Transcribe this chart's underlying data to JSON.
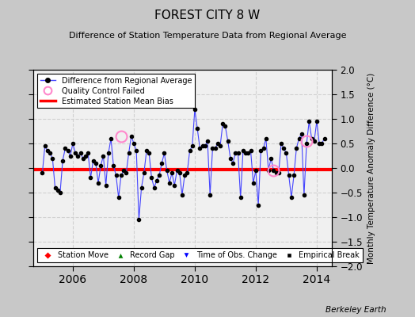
{
  "title": "FOREST CITY 8 W",
  "subtitle": "Difference of Station Temperature Data from Regional Average",
  "ylabel": "Monthly Temperature Anomaly Difference (°C)",
  "xlim": [
    2004.7,
    2014.5
  ],
  "ylim": [
    -2,
    2
  ],
  "yticks": [
    -2,
    -1.5,
    -1,
    -0.5,
    0,
    0.5,
    1,
    1.5,
    2
  ],
  "xticks": [
    2006,
    2008,
    2010,
    2012,
    2014
  ],
  "bias": -0.04,
  "background_color": "#c8c8c8",
  "plot_bg_color": "#f0f0f0",
  "grid_color": "#d0d0d0",
  "line_color": "#4444ff",
  "bias_color": "#ff0000",
  "qc_color": "#ff88cc",
  "watermark": "Berkeley Earth",
  "times": [
    2005.0,
    2005.083,
    2005.167,
    2005.25,
    2005.333,
    2005.417,
    2005.5,
    2005.583,
    2005.667,
    2005.75,
    2005.833,
    2005.917,
    2006.0,
    2006.083,
    2006.167,
    2006.25,
    2006.333,
    2006.417,
    2006.5,
    2006.583,
    2006.667,
    2006.75,
    2006.833,
    2006.917,
    2007.0,
    2007.083,
    2007.167,
    2007.25,
    2007.333,
    2007.417,
    2007.5,
    2007.583,
    2007.667,
    2007.75,
    2007.833,
    2007.917,
    2008.0,
    2008.083,
    2008.167,
    2008.25,
    2008.333,
    2008.417,
    2008.5,
    2008.583,
    2008.667,
    2008.75,
    2008.833,
    2008.917,
    2009.0,
    2009.083,
    2009.167,
    2009.25,
    2009.333,
    2009.417,
    2009.5,
    2009.583,
    2009.667,
    2009.75,
    2009.833,
    2009.917,
    2010.0,
    2010.083,
    2010.167,
    2010.25,
    2010.333,
    2010.417,
    2010.5,
    2010.583,
    2010.667,
    2010.75,
    2010.833,
    2010.917,
    2011.0,
    2011.083,
    2011.167,
    2011.25,
    2011.333,
    2011.417,
    2011.5,
    2011.583,
    2011.667,
    2011.75,
    2011.833,
    2011.917,
    2012.0,
    2012.083,
    2012.167,
    2012.25,
    2012.333,
    2012.417,
    2012.5,
    2012.583,
    2012.667,
    2012.75,
    2012.833,
    2012.917,
    2013.0,
    2013.083,
    2013.167,
    2013.25,
    2013.333,
    2013.417,
    2013.5,
    2013.583,
    2013.667,
    2013.75,
    2013.833,
    2013.917,
    2014.0,
    2014.083,
    2014.167,
    2014.25
  ],
  "values": [
    -0.1,
    0.45,
    0.35,
    0.3,
    0.2,
    -0.4,
    -0.45,
    -0.5,
    0.15,
    0.4,
    0.35,
    0.25,
    0.5,
    0.3,
    0.25,
    0.3,
    0.2,
    0.25,
    0.3,
    -0.2,
    0.15,
    0.1,
    -0.3,
    0.05,
    0.25,
    -0.35,
    0.3,
    0.6,
    0.05,
    -0.15,
    -0.6,
    -0.15,
    -0.05,
    -0.1,
    0.3,
    0.65,
    0.5,
    0.35,
    -1.05,
    -0.4,
    -0.1,
    0.35,
    0.3,
    -0.2,
    -0.4,
    -0.25,
    -0.15,
    0.1,
    0.3,
    -0.05,
    -0.3,
    -0.1,
    -0.35,
    -0.05,
    -0.1,
    -0.55,
    -0.15,
    -0.1,
    0.35,
    0.45,
    1.2,
    0.8,
    0.4,
    0.45,
    0.45,
    0.55,
    -0.55,
    0.4,
    0.4,
    0.5,
    0.45,
    0.9,
    0.85,
    0.55,
    0.2,
    0.1,
    0.3,
    0.3,
    -0.6,
    0.35,
    0.3,
    0.3,
    0.35,
    -0.3,
    -0.05,
    -0.75,
    0.35,
    0.4,
    0.6,
    -0.05,
    0.2,
    -0.05,
    -0.1,
    -0.1,
    0.5,
    0.4,
    0.3,
    -0.15,
    -0.6,
    -0.15,
    0.4,
    0.6,
    0.7,
    -0.55,
    0.5,
    0.95,
    0.6,
    0.55,
    0.95,
    0.5,
    0.5,
    0.6
  ],
  "qc_times": [
    2007.583,
    2012.583,
    2013.667
  ],
  "qc_values": [
    0.65,
    -0.05,
    0.55
  ]
}
